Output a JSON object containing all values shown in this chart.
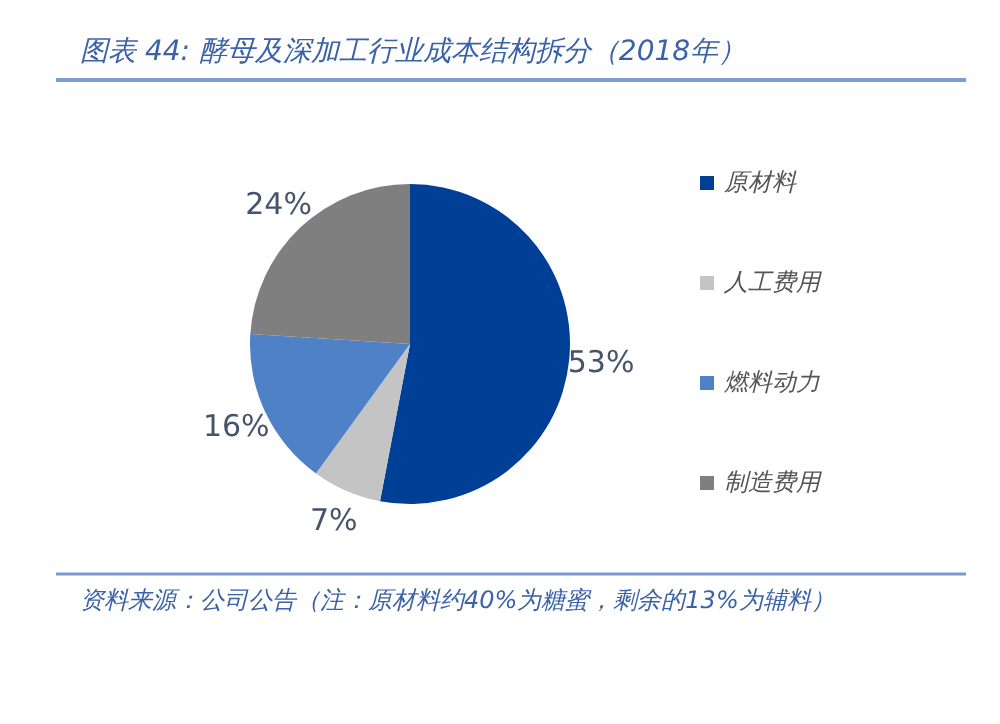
{
  "chart_data": {
    "type": "pie",
    "title": "图表 44: 酵母及深加工行业成本结构拆分（2018年）",
    "categories": [
      "原材料",
      "人工费用",
      "燃料动力",
      "制造费用"
    ],
    "values": [
      53,
      7,
      16,
      24
    ],
    "colors": [
      "#003f96",
      "#c4c4c4",
      "#4f81c7",
      "#7f7f7f"
    ],
    "value_labels": [
      "53%",
      "7%",
      "16%",
      "24%"
    ],
    "legend": "right",
    "annotations": [
      "资料来源：公司公告（注：原材料约40%为糖蜜，剩余的13%为辅料）"
    ]
  }
}
